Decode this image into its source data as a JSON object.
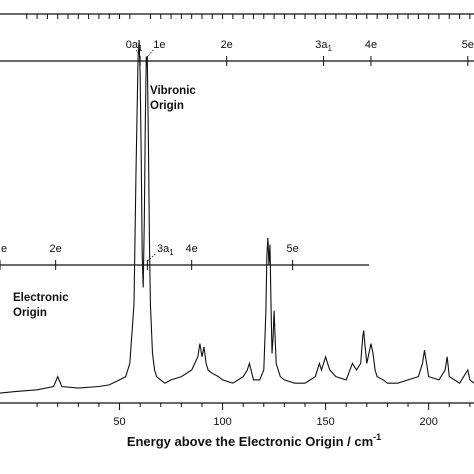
{
  "chart_data": {
    "type": "line",
    "xlabel": "Energy above the Electronic Origin / cm",
    "xlabel_superscript": "-1",
    "xlim": [
      -8,
      222
    ],
    "x_ticks": [
      50,
      100,
      150,
      200
    ],
    "grid": false,
    "series": [
      {
        "x": [
          -8,
          0,
          10,
          18,
          20,
          22,
          30,
          40,
          45,
          50,
          53,
          55,
          57,
          58,
          59,
          59.5,
          60,
          60.5,
          61,
          61.5,
          62,
          62.5,
          63,
          63.5,
          64,
          64.5,
          65,
          66,
          67,
          68,
          70,
          72,
          75,
          80,
          85,
          88,
          89,
          90,
          91,
          92,
          93,
          95,
          98,
          100,
          105,
          110,
          112,
          113,
          115,
          118,
          120,
          121,
          121.5,
          122,
          122.5,
          123,
          123.5,
          124,
          124.5,
          125,
          125.5,
          126,
          127,
          128,
          130,
          135,
          140,
          145,
          147,
          148,
          150,
          152,
          155,
          160,
          163,
          165,
          167,
          168,
          168.5,
          169,
          170,
          171,
          172,
          173,
          174,
          175,
          178,
          180,
          185,
          190,
          195,
          197,
          198,
          199,
          200,
          205,
          208,
          209,
          210,
          215,
          219,
          220,
          222
        ],
        "y": [
          0.03,
          0.035,
          0.04,
          0.05,
          0.08,
          0.05,
          0.045,
          0.05,
          0.055,
          0.07,
          0.08,
          0.12,
          0.3,
          0.7,
          1.05,
          1.1,
          1.0,
          0.75,
          0.45,
          0.35,
          0.55,
          0.85,
          1.05,
          1.02,
          0.8,
          0.5,
          0.3,
          0.15,
          0.1,
          0.08,
          0.07,
          0.06,
          0.07,
          0.08,
          0.1,
          0.14,
          0.18,
          0.14,
          0.17,
          0.12,
          0.1,
          0.09,
          0.08,
          0.07,
          0.06,
          0.08,
          0.1,
          0.12,
          0.07,
          0.07,
          0.1,
          0.28,
          0.45,
          0.5,
          0.42,
          0.48,
          0.3,
          0.15,
          0.2,
          0.28,
          0.2,
          0.12,
          0.1,
          0.08,
          0.07,
          0.06,
          0.06,
          0.08,
          0.12,
          0.1,
          0.14,
          0.1,
          0.08,
          0.07,
          0.12,
          0.1,
          0.12,
          0.2,
          0.22,
          0.18,
          0.12,
          0.15,
          0.18,
          0.15,
          0.1,
          0.08,
          0.07,
          0.06,
          0.06,
          0.07,
          0.08,
          0.12,
          0.16,
          0.12,
          0.08,
          0.07,
          0.1,
          0.14,
          0.08,
          0.06,
          0.1,
          0.07,
          0.06
        ]
      }
    ],
    "progressions": [
      {
        "label_lines": [
          "Vibronic",
          "Origin"
        ],
        "levels": [
          {
            "label": "0a",
            "sub": "1",
            "x": 60
          },
          {
            "label": "1e",
            "x": 63.5
          },
          {
            "label": "2e",
            "x": 102
          },
          {
            "label": "3a",
            "sub": "1",
            "x": 149
          },
          {
            "label": "4e",
            "x": 172
          },
          {
            "label": "5e",
            "x": 219
          }
        ],
        "minor_ticks": [
          5,
          10,
          15,
          20,
          25,
          30,
          35,
          40,
          45,
          50,
          55,
          65,
          70,
          75,
          80,
          85,
          90,
          95,
          100,
          105,
          110,
          115,
          120,
          125,
          130,
          135,
          140,
          145,
          150,
          155,
          160,
          165,
          170,
          175,
          180,
          185,
          190,
          195,
          200,
          205,
          210,
          215,
          220
        ]
      },
      {
        "label_lines": [
          "Electronic",
          "Origin"
        ],
        "levels": [
          {
            "label": "e",
            "x": -8
          },
          {
            "label": "2e",
            "x": 19
          },
          {
            "label": "3a",
            "sub": "1",
            "x": 63.5
          },
          {
            "label": "4e",
            "x": 85
          },
          {
            "label": "5e",
            "x": 134
          }
        ]
      }
    ]
  }
}
